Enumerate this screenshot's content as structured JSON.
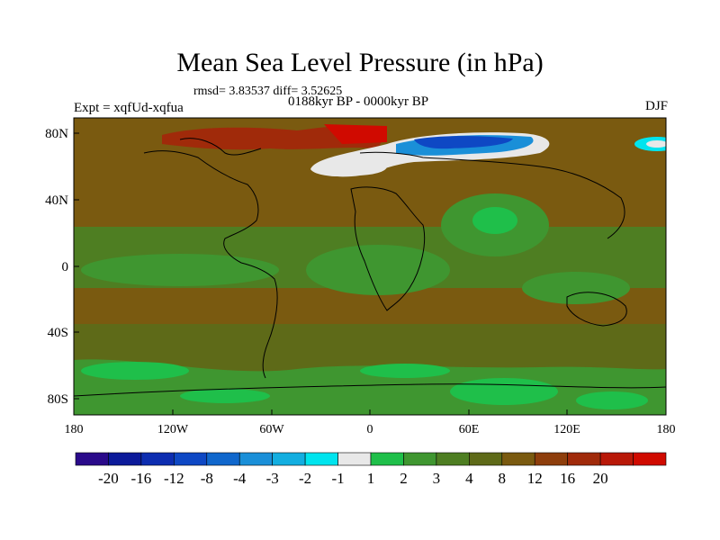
{
  "title": "Mean Sea Level Pressure (in hPa)",
  "stats": "rmsd= 3.83537 diff= 3.52625",
  "experiment": "Expt = xqfUd-xqfua",
  "period": "0188kyr BP - 0000kyr BP",
  "season": "DJF",
  "map": {
    "lat_ticks": [
      "80N",
      "40N",
      "0",
      "40S",
      "80S"
    ],
    "lon_ticks": [
      "180",
      "120W",
      "60W",
      "0",
      "60E",
      "120E",
      "180"
    ]
  },
  "colorbar": {
    "colors": [
      "#2a0a8a",
      "#0c1a9a",
      "#0d2db0",
      "#0e48c4",
      "#1067cc",
      "#1a8fd8",
      "#13aee0",
      "#00e4ee",
      "#e8e8e8",
      "#1fbf4a",
      "#3f9630",
      "#4e7e22",
      "#5e6a18",
      "#7a5a10",
      "#8e3e0c",
      "#a02a0a",
      "#b81808",
      "#d00a00"
    ],
    "labels": [
      "-20",
      "-16",
      "-12",
      "-8",
      "-4",
      "-3",
      "-2",
      "-1",
      "1",
      "2",
      "3",
      "4",
      "8",
      "12",
      "16",
      "20"
    ]
  }
}
